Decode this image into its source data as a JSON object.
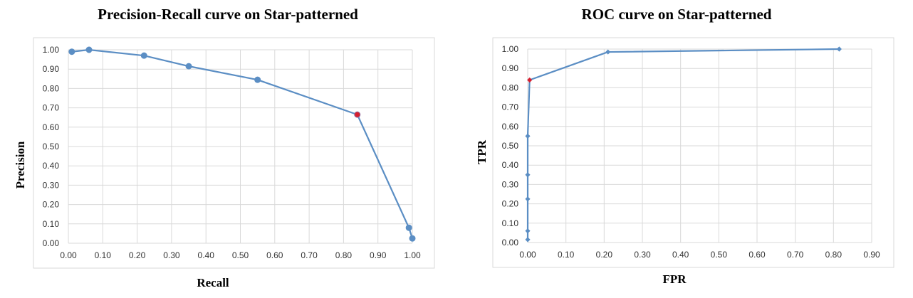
{
  "chart_data": [
    {
      "type": "line",
      "title": "Precision-Recall curve on Star-patterned",
      "xlabel": "Recall",
      "ylabel": "Precision",
      "xlim": [
        0,
        1
      ],
      "ylim": [
        0,
        1
      ],
      "x_ticks": [
        "0.00",
        "0.10",
        "0.20",
        "0.30",
        "0.40",
        "0.50",
        "0.60",
        "0.70",
        "0.80",
        "0.90",
        "1.00"
      ],
      "y_ticks": [
        "0.00",
        "0.10",
        "0.20",
        "0.30",
        "0.40",
        "0.50",
        "0.60",
        "0.70",
        "0.80",
        "0.90",
        "1.00"
      ],
      "grid": true,
      "marker": "circle",
      "series_color": "#5b8ec4",
      "highlight_color": "#d62030",
      "x": [
        0.01,
        0.06,
        0.22,
        0.35,
        0.55,
        0.84,
        0.99,
        1.0
      ],
      "y": [
        0.99,
        1.0,
        0.97,
        0.915,
        0.845,
        0.665,
        0.08,
        0.025
      ],
      "highlight_index": 5
    },
    {
      "type": "line",
      "title": "ROC curve on Star-patterned",
      "xlabel": "FPR",
      "ylabel": "TPR",
      "xlim": [
        0,
        0.9
      ],
      "ylim": [
        0,
        1
      ],
      "x_ticks": [
        "0.00",
        "0.10",
        "0.20",
        "0.30",
        "0.40",
        "0.50",
        "0.60",
        "0.70",
        "0.80",
        "0.90"
      ],
      "y_ticks": [
        "0.00",
        "0.10",
        "0.20",
        "0.30",
        "0.40",
        "0.50",
        "0.60",
        "0.70",
        "0.80",
        "0.90",
        "1.00"
      ],
      "grid": true,
      "marker": "diamond",
      "series_color": "#5b8ec4",
      "highlight_color": "#d62030",
      "x": [
        0.0,
        0.0,
        0.0,
        0.0,
        0.0,
        0.005,
        0.21,
        0.815
      ],
      "y": [
        0.015,
        0.06,
        0.225,
        0.35,
        0.55,
        0.84,
        0.985,
        1.0
      ],
      "highlight_index": 5
    }
  ]
}
